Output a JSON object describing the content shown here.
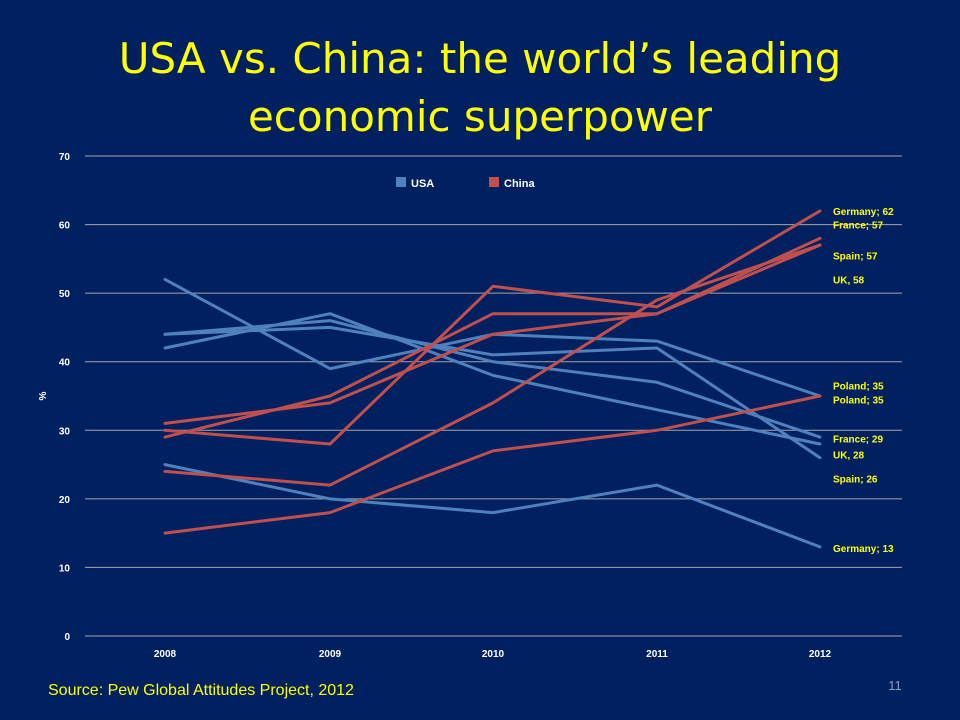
{
  "slide": {
    "title": "USA vs. China: the world’s leading economic superpower",
    "source": "Source: Pew Global Attitudes Project, 2012",
    "number": "11"
  },
  "colors": {
    "background": "#002060",
    "title": "#FFFF00",
    "usa": "#4F81BD",
    "china": "#C0504D",
    "grid": "#A6A6A6",
    "labels": "#FFFF00"
  },
  "chart_data": {
    "type": "line",
    "x": [
      "2008",
      "2009",
      "2010",
      "2011",
      "2012"
    ],
    "ylabel": "%",
    "ylim": [
      0,
      70
    ],
    "yticks": [
      0,
      10,
      20,
      30,
      40,
      50,
      60,
      70
    ],
    "grid": true,
    "legend": {
      "position": "top-center",
      "entries": [
        "USA",
        "China"
      ]
    },
    "series": [
      {
        "group": "USA",
        "values": [
          52,
          39,
          44,
          43,
          35
        ]
      },
      {
        "group": "USA",
        "values": [
          44,
          46,
          40,
          37,
          29
        ]
      },
      {
        "group": "USA",
        "values": [
          42,
          47,
          38,
          33,
          28
        ]
      },
      {
        "group": "USA",
        "values": [
          44,
          45,
          41,
          42,
          26
        ]
      },
      {
        "group": "USA",
        "values": [
          25,
          20,
          18,
          22,
          13
        ]
      },
      {
        "group": "China",
        "values": [
          30,
          28,
          51,
          48,
          62
        ]
      },
      {
        "group": "China",
        "values": [
          29,
          35,
          47,
          47,
          57
        ]
      },
      {
        "group": "China",
        "values": [
          31,
          34,
          44,
          47,
          58
        ]
      },
      {
        "group": "China",
        "values": [
          24,
          22,
          34,
          49,
          57
        ]
      },
      {
        "group": "China",
        "values": [
          15,
          18,
          27,
          30,
          35
        ]
      }
    ],
    "annotations": [
      {
        "text": "Germany; 62",
        "y": 62
      },
      {
        "text": "France; 57",
        "y": 60
      },
      {
        "text": "Spain; 57",
        "y": 55.5
      },
      {
        "text": "UK, 58",
        "y": 52
      },
      {
        "text": "Poland; 35",
        "y": 36.5
      },
      {
        "text": "Poland; 35",
        "y": 34.5
      },
      {
        "text": "France; 29",
        "y": 28.8
      },
      {
        "text": "UK, 28",
        "y": 26.5
      },
      {
        "text": "Spain; 26",
        "y": 23
      },
      {
        "text": "Germany; 13",
        "y": 12.8
      }
    ]
  }
}
